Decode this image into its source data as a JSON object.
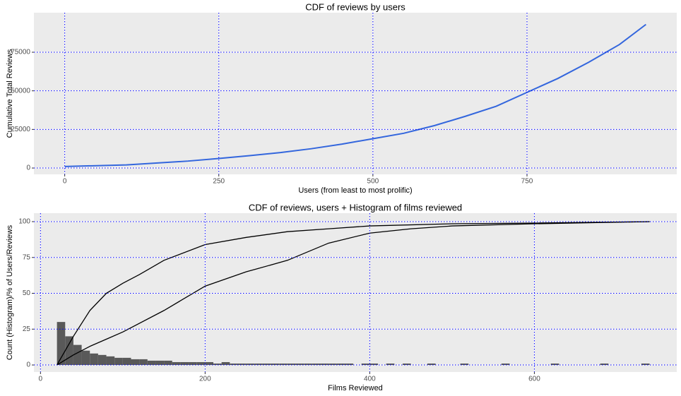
{
  "chart_data": [
    {
      "type": "line",
      "title": "CDF of reviews by users",
      "x_label": "Users (from least to most prolific)",
      "y_label": "Cumulative Total Reviews",
      "series": [
        {
          "color": "#3366dd",
          "x": [
            0,
            100,
            200,
            250,
            300,
            350,
            400,
            450,
            500,
            550,
            600,
            650,
            700,
            750,
            800,
            850,
            900,
            943
          ],
          "values": [
            1000,
            2000,
            4500,
            6200,
            8000,
            10000,
            12500,
            15500,
            19000,
            22500,
            27500,
            33500,
            40000,
            49000,
            58000,
            68500,
            80000,
            93000
          ]
        }
      ],
      "xlim": [
        -50,
        993
      ],
      "ylim": [
        -4100,
        100600
      ],
      "xticks": [
        0,
        250,
        500,
        750
      ],
      "yticks": [
        0,
        25000,
        50000,
        75000
      ],
      "grid": true,
      "guide_color": "#0000ff"
    },
    {
      "type": "histogram",
      "title": "CDF of reviews, users + Histogram of films reviewed",
      "x_label": "Films Reviewed",
      "y_label": "Count (Histogram)/% of Users/Reviews",
      "bins": [
        20,
        30,
        40,
        50,
        60,
        70,
        80,
        90,
        100,
        110,
        120,
        130,
        140,
        150,
        160,
        170,
        180,
        190,
        200,
        210,
        220,
        230,
        240,
        250,
        260,
        270,
        280,
        290,
        300,
        310,
        320,
        330,
        340,
        350,
        360,
        370,
        380,
        390,
        400,
        410,
        420,
        430,
        440,
        450,
        460,
        470,
        480,
        490,
        500,
        510,
        520,
        530,
        540,
        550,
        560,
        570,
        580,
        590,
        600,
        610,
        620,
        630,
        640,
        650,
        660,
        670,
        680,
        690,
        700,
        710,
        720,
        730,
        740
      ],
      "counts": [
        30,
        20,
        14,
        10,
        8,
        7,
        6,
        5,
        5,
        4,
        4,
        3,
        3,
        3,
        2,
        2,
        2,
        2,
        2,
        1,
        2,
        1,
        1,
        1,
        1,
        1,
        1,
        1,
        1,
        1,
        1,
        1,
        1,
        1,
        1,
        1,
        0,
        1,
        1,
        0,
        1,
        0,
        1,
        0,
        0,
        1,
        0,
        0,
        0,
        1,
        0,
        0,
        0,
        0,
        1,
        0,
        0,
        0,
        0,
        0,
        1,
        0,
        0,
        0,
        0,
        0,
        1,
        0,
        0,
        0,
        0,
        1
      ],
      "color": "#595959",
      "series": [
        {
          "color": "#000000",
          "x": [
            20,
            40,
            60,
            80,
            100,
            120,
            150,
            200,
            250,
            300,
            350,
            400,
            500,
            600,
            740
          ],
          "values": [
            0,
            20,
            38,
            50,
            57,
            63,
            73,
            84,
            89,
            93,
            95,
            97,
            98.5,
            99,
            100
          ]
        },
        {
          "color": "#000000",
          "x": [
            20,
            40,
            60,
            80,
            100,
            150,
            200,
            250,
            300,
            350,
            400,
            450,
            500,
            600,
            740
          ],
          "values": [
            0,
            7,
            13,
            18,
            23,
            38,
            55,
            65,
            73,
            85,
            92,
            95,
            97,
            98.5,
            100
          ]
        }
      ],
      "xlim": [
        -8,
        773
      ],
      "ylim": [
        -4.9,
        105.9
      ],
      "xticks": [
        0,
        200,
        400,
        600
      ],
      "yticks": [
        0,
        25,
        50,
        75,
        100
      ],
      "grid": true,
      "guide_color": "#0000ff"
    }
  ]
}
